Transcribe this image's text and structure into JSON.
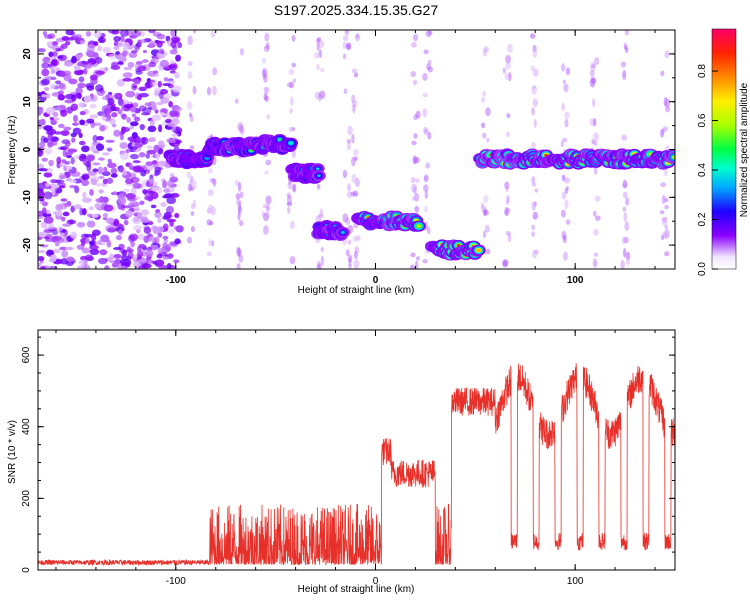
{
  "title": "S197.2025.334.15.35.G27",
  "chart_data": [
    {
      "type": "heatmap",
      "name": "spectrogram",
      "xlabel": "Height of straight line (km)",
      "ylabel": "Frequency (Hz)",
      "xlim": [
        -169,
        150
      ],
      "ylim": [
        -25,
        25
      ],
      "xticks": [
        -100,
        0,
        100
      ],
      "xticklabels": [
        "-100",
        "0",
        "100"
      ],
      "yticks": [
        -20,
        -10,
        0,
        10,
        20
      ],
      "yticklabels": [
        "-20",
        "-10",
        "0",
        "10",
        "20"
      ],
      "colorbar": {
        "label": "Normalized spectral amplitude",
        "range": [
          0,
          0.97
        ],
        "ticks": [
          0.0,
          0.2,
          0.4,
          0.6,
          0.8
        ],
        "ticklabels": [
          "0.0",
          "0.2",
          "0.4",
          "0.6",
          "0.8"
        ]
      },
      "noise_region_x": [
        -169,
        -98
      ],
      "tracks": [
        {
          "x": [
            -103,
            -84
          ],
          "freq": -2,
          "level": 0.4
        },
        {
          "x": [
            -84,
            -60
          ],
          "freq": 0.5,
          "level": 0.5
        },
        {
          "x": [
            -60,
            -42
          ],
          "freq": 1,
          "level": 0.45
        },
        {
          "x": [
            -42,
            -28
          ],
          "freq": -5,
          "level": 0.35
        },
        {
          "x": [
            -29,
            -16
          ],
          "freq": -17,
          "level": 0.4
        },
        {
          "x": [
            -9,
            22
          ],
          "freq": -15,
          "level": 0.75
        },
        {
          "x": [
            28,
            52
          ],
          "freq": -21,
          "level": 0.9
        },
        {
          "x": [
            52,
            150
          ],
          "freq": -2,
          "level": 0.8
        }
      ]
    },
    {
      "type": "line",
      "name": "snr",
      "xlabel": "Height of straight line (km)",
      "ylabel": "SNR (10 * v/v)",
      "xlim": [
        -169,
        150
      ],
      "ylim": [
        0,
        670
      ],
      "xticks": [
        -100,
        0,
        100
      ],
      "xticklabels": [
        "-100",
        "0",
        "100"
      ],
      "yticks": [
        0,
        200,
        400,
        600
      ],
      "yticklabels": [
        "0",
        "200",
        "400",
        "600"
      ],
      "color": "#e8302a",
      "segments": [
        {
          "x": [
            -169,
            -83
          ],
          "base": 18
        },
        {
          "x": [
            -83,
            3
          ],
          "base": 60
        },
        {
          "x": [
            3,
            8
          ],
          "base": 330
        },
        {
          "x": [
            8,
            30
          ],
          "base": 270
        },
        {
          "x": [
            30,
            38
          ],
          "base": 40
        },
        {
          "x": [
            38,
            60
          ],
          "base": 470
        },
        {
          "x": [
            60,
            150
          ],
          "base": 520,
          "drops_to": 80
        }
      ]
    }
  ]
}
